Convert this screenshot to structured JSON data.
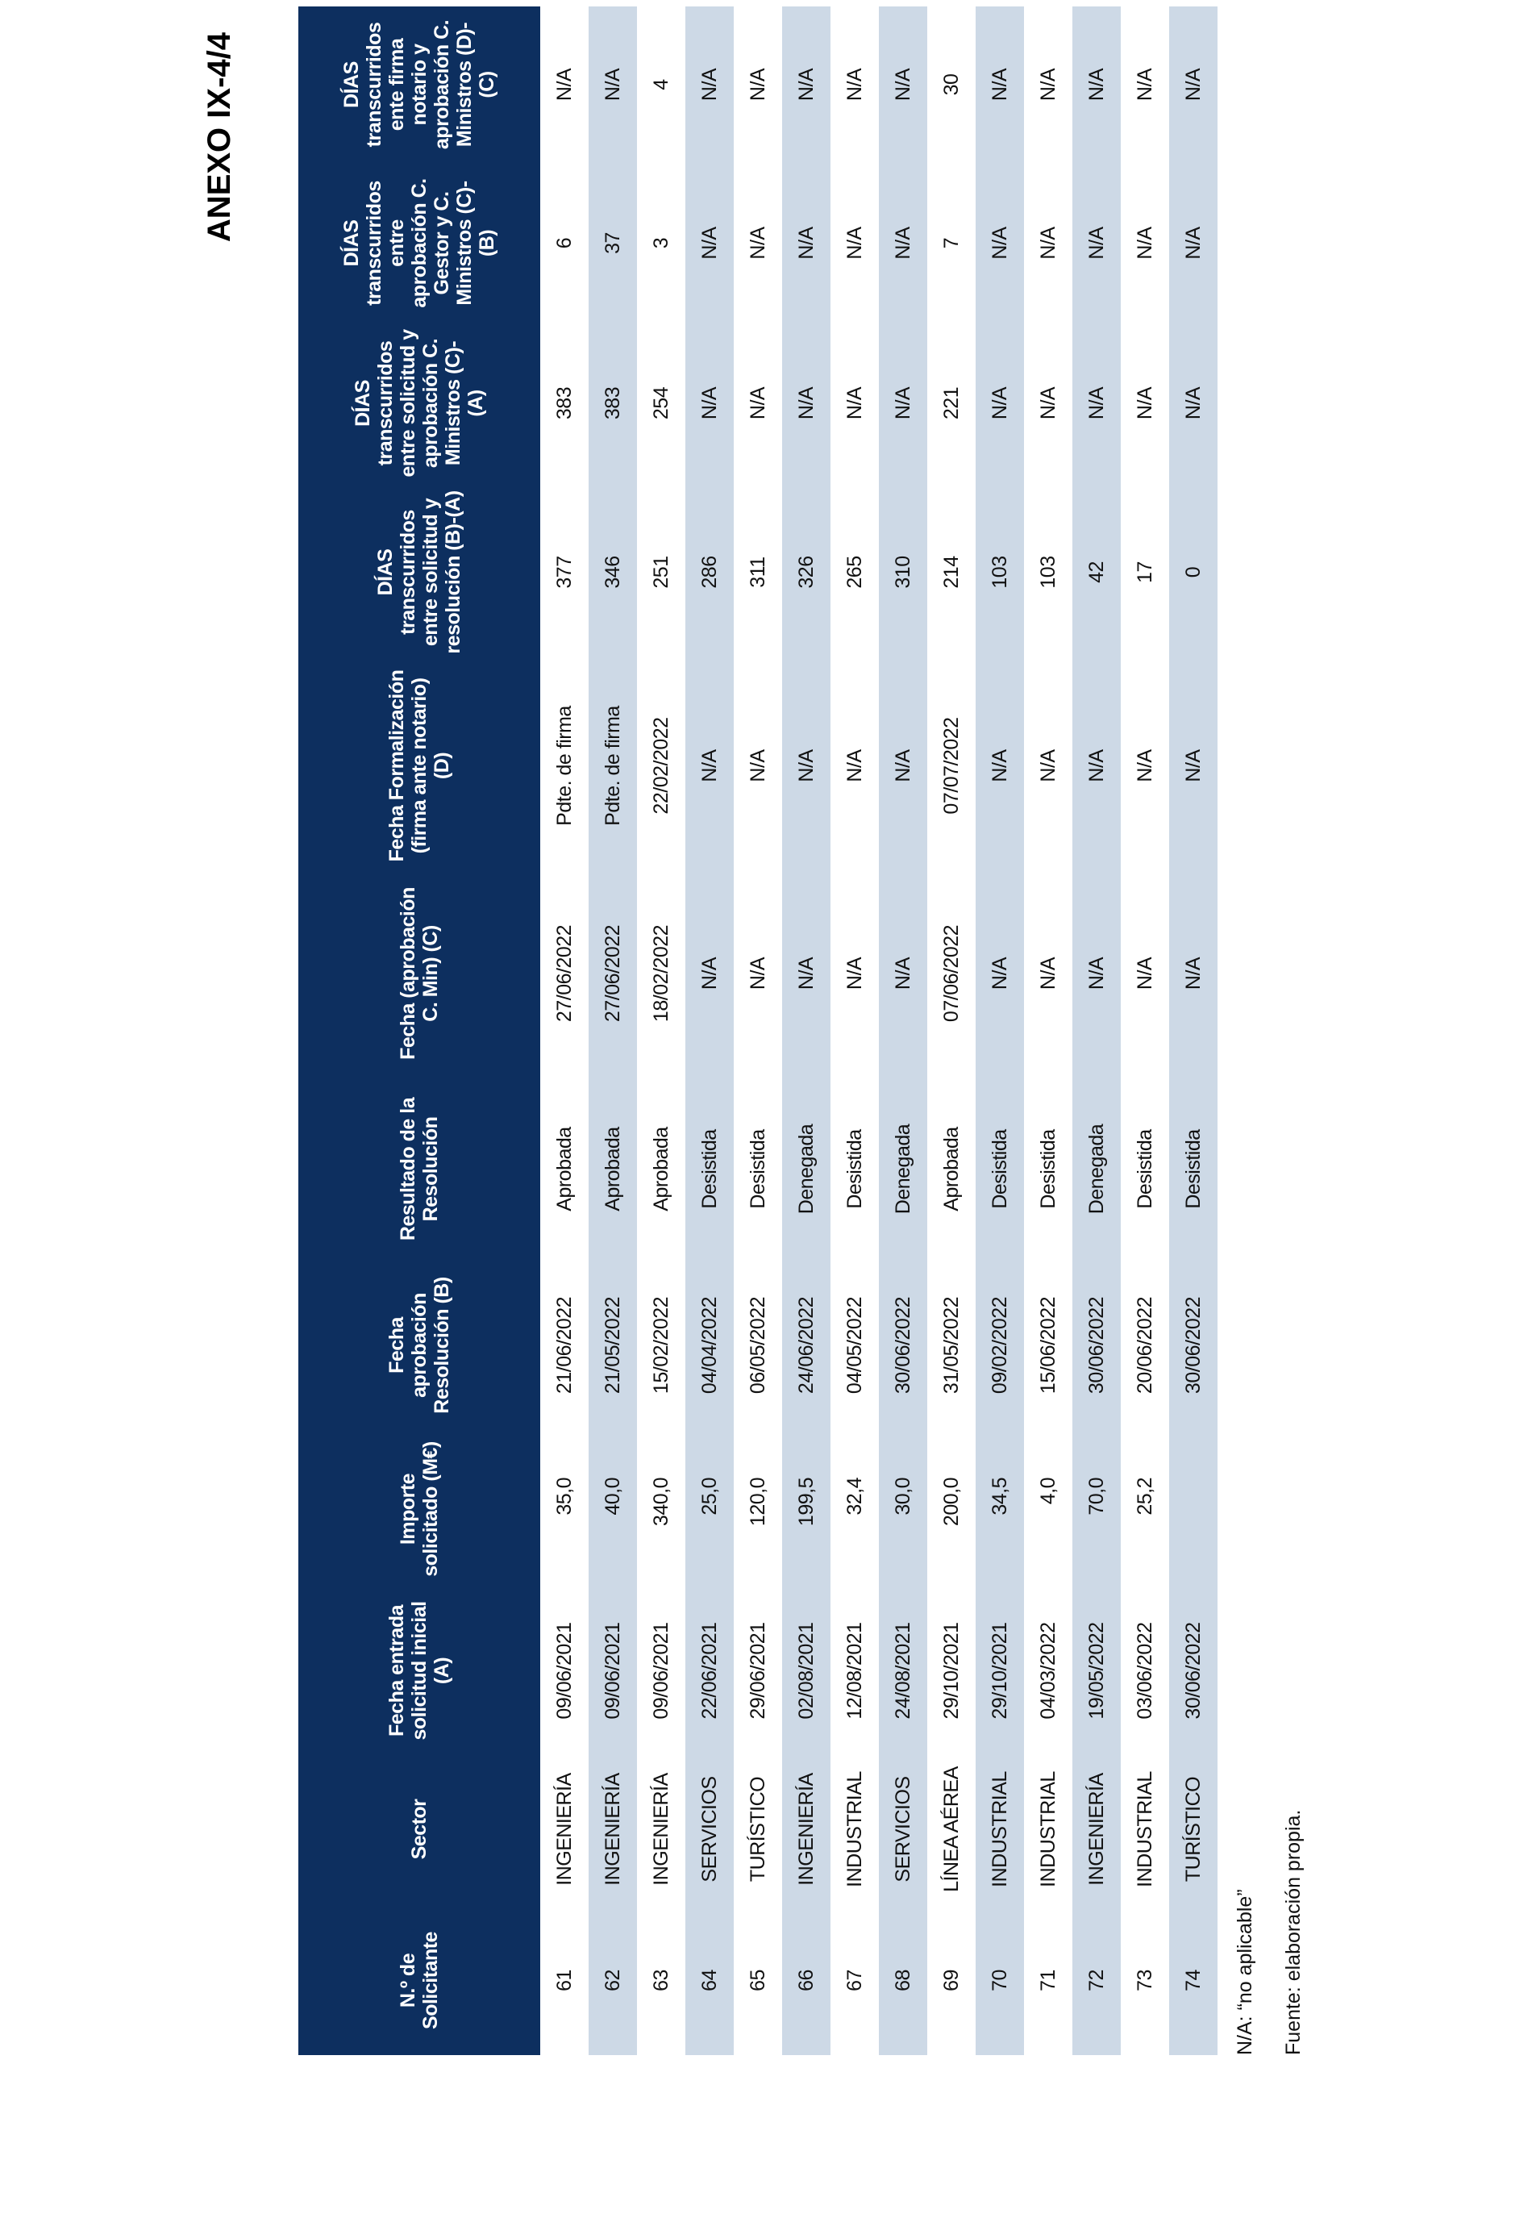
{
  "title": "ANEXO IX-4/4",
  "table": {
    "header": [
      "N.º de Solicitante",
      "Sector",
      "Fecha entrada solicitud inicial (A)",
      "Importe solicitado (M€)",
      "Fecha aprobación Resolución (B)",
      "Resultado de la Resolución",
      "Fecha (aprobación C. Min) (C)",
      "Fecha Formalización (firma ante notario) (D)",
      "DÍAS transcurridos entre solicitud y resolución (B)-(A)",
      "DÍAS transcurridos entre solicitud y aprobación C. Ministros (C)-(A)",
      "DÍAS transcurridos entre aprobación C. Gestor y C. Ministros (C)-(B)",
      "DÍAS transcurridos ente firma notario y aprobación C. Ministros (D)-(C)"
    ],
    "rows": [
      [
        "61",
        "INGENIERÍA",
        "09/06/2021",
        "35,0",
        "21/06/2022",
        "Aprobada",
        "27/06/2022",
        "Pdte. de firma",
        "377",
        "383",
        "6",
        "N/A"
      ],
      [
        "62",
        "INGENIERÍA",
        "09/06/2021",
        "40,0",
        "21/05/2022",
        "Aprobada",
        "27/06/2022",
        "Pdte. de firma",
        "346",
        "383",
        "37",
        "N/A"
      ],
      [
        "63",
        "INGENIERÍA",
        "09/06/2021",
        "340,0",
        "15/02/2022",
        "Aprobada",
        "18/02/2022",
        "22/02/2022",
        "251",
        "254",
        "3",
        "4"
      ],
      [
        "64",
        "SERVICIOS",
        "22/06/2021",
        "25,0",
        "04/04/2022",
        "Desistida",
        "N/A",
        "N/A",
        "286",
        "N/A",
        "N/A",
        "N/A"
      ],
      [
        "65",
        "TURÍSTICO",
        "29/06/2021",
        "120,0",
        "06/05/2022",
        "Desistida",
        "N/A",
        "N/A",
        "311",
        "N/A",
        "N/A",
        "N/A"
      ],
      [
        "66",
        "INGENIERÍA",
        "02/08/2021",
        "199,5",
        "24/06/2022",
        "Denegada",
        "N/A",
        "N/A",
        "326",
        "N/A",
        "N/A",
        "N/A"
      ],
      [
        "67",
        "INDUSTRIAL",
        "12/08/2021",
        "32,4",
        "04/05/2022",
        "Desistida",
        "N/A",
        "N/A",
        "265",
        "N/A",
        "N/A",
        "N/A"
      ],
      [
        "68",
        "SERVICIOS",
        "24/08/2021",
        "30,0",
        "30/06/2022",
        "Denegada",
        "N/A",
        "N/A",
        "310",
        "N/A",
        "N/A",
        "N/A"
      ],
      [
        "69",
        "LÍNEA AÉREA",
        "29/10/2021",
        "200,0",
        "31/05/2022",
        "Aprobada",
        "07/06/2022",
        "07/07/2022",
        "214",
        "221",
        "7",
        "30"
      ],
      [
        "70",
        "INDUSTRIAL",
        "29/10/2021",
        "34,5",
        "09/02/2022",
        "Desistida",
        "N/A",
        "N/A",
        "103",
        "N/A",
        "N/A",
        "N/A"
      ],
      [
        "71",
        "INDUSTRIAL",
        "04/03/2022",
        "4,0",
        "15/06/2022",
        "Desistida",
        "N/A",
        "N/A",
        "103",
        "N/A",
        "N/A",
        "N/A"
      ],
      [
        "72",
        "INGENIERÍA",
        "19/05/2022",
        "70,0",
        "30/06/2022",
        "Denegada",
        "N/A",
        "N/A",
        "42",
        "N/A",
        "N/A",
        "N/A"
      ],
      [
        "73",
        "INDUSTRIAL",
        "03/06/2022",
        "25,2",
        "20/06/2022",
        "Desistida",
        "N/A",
        "N/A",
        "17",
        "N/A",
        "N/A",
        "N/A"
      ],
      [
        "74",
        "TURÍSTICO",
        "30/06/2022",
        null,
        "30/06/2022",
        "Desistida",
        "N/A",
        "N/A",
        "0",
        "N/A",
        "N/A",
        "N/A"
      ]
    ]
  },
  "notes": [
    "N/A: “no aplicable”",
    "Fuente: elaboración propia."
  ]
}
